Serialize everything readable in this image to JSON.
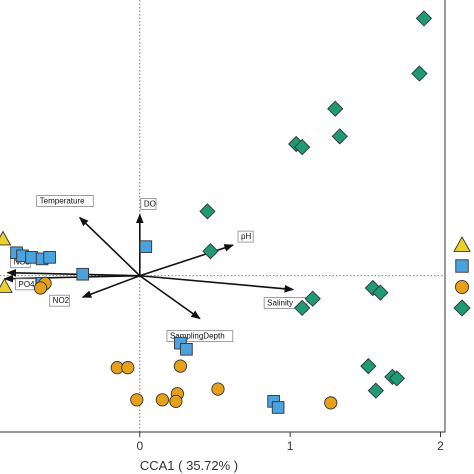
{
  "chart_data": {
    "type": "scatter",
    "xlabel": "CCA1 ( 35.72% )",
    "ylabel": "",
    "xlim": [
      -0.93,
      2.03
    ],
    "ylim": [
      -1.02,
      1.8
    ],
    "xticks": [
      0,
      1,
      2
    ],
    "xtick_labels": [
      "0",
      "1",
      "2"
    ],
    "grid": false,
    "zero_lines": true,
    "colors": {
      "triangle": "#e8d22a",
      "square": "#4aa3df",
      "circle": "#e6a019",
      "diamond": "#1f9a74"
    },
    "series": [
      {
        "marker": "diamond",
        "color": "#1f9a74",
        "points": [
          [
            1.89,
            1.68
          ],
          [
            1.86,
            1.32
          ],
          [
            1.3,
            1.09
          ],
          [
            1.33,
            0.91
          ],
          [
            1.04,
            0.86
          ],
          [
            1.08,
            0.84
          ],
          [
            0.45,
            0.42
          ],
          [
            0.47,
            0.16
          ],
          [
            1.55,
            -0.08
          ],
          [
            1.6,
            -0.11
          ],
          [
            1.15,
            -0.15
          ],
          [
            1.08,
            -0.21
          ],
          [
            1.52,
            -0.59
          ],
          [
            1.68,
            -0.66
          ],
          [
            1.71,
            -0.67
          ],
          [
            1.57,
            -0.75
          ]
        ]
      },
      {
        "marker": "square",
        "color": "#4aa3df",
        "points": [
          [
            0.04,
            0.19
          ],
          [
            -0.82,
            0.15
          ],
          [
            -0.78,
            0.13
          ],
          [
            -0.72,
            0.12
          ],
          [
            -0.65,
            0.11
          ],
          [
            -0.6,
            0.12
          ],
          [
            -0.38,
            0.01
          ],
          [
            -0.65,
            -0.05
          ],
          [
            0.27,
            -0.44
          ],
          [
            0.31,
            -0.48
          ],
          [
            0.89,
            -0.82
          ],
          [
            0.92,
            -0.86
          ]
        ]
      },
      {
        "marker": "circle",
        "color": "#e6a019",
        "points": [
          [
            -0.63,
            -0.05
          ],
          [
            -0.66,
            -0.08
          ],
          [
            -0.15,
            -0.6
          ],
          [
            -0.08,
            -0.6
          ],
          [
            0.27,
            -0.59
          ],
          [
            0.25,
            -0.77
          ],
          [
            0.52,
            -0.74
          ],
          [
            0.15,
            -0.81
          ],
          [
            0.24,
            -0.82
          ],
          [
            -0.02,
            -0.81
          ],
          [
            1.27,
            -0.83
          ]
        ]
      },
      {
        "marker": "triangle",
        "color": "#e8d22a",
        "points": [
          [
            -0.91,
            0.24
          ],
          [
            -0.9,
            -0.07
          ]
        ]
      }
    ],
    "vectors": [
      {
        "name": "DO",
        "x": 0.0,
        "y": 0.4
      },
      {
        "name": "pH",
        "x": 0.62,
        "y": 0.2
      },
      {
        "name": "Salinity",
        "x": 1.02,
        "y": -0.09
      },
      {
        "name": "SamplingDepth",
        "x": 0.4,
        "y": -0.28
      },
      {
        "name": "NO2",
        "x": -0.38,
        "y": -0.14
      },
      {
        "name": "PO4",
        "x": -0.9,
        "y": -0.02
      },
      {
        "name": "NO3",
        "x": -0.88,
        "y": 0.02
      },
      {
        "name": "Temperature",
        "x": -0.4,
        "y": 0.38
      }
    ],
    "legend": {
      "placement": "right",
      "markers": [
        "triangle",
        "square",
        "circle",
        "diamond"
      ]
    }
  }
}
